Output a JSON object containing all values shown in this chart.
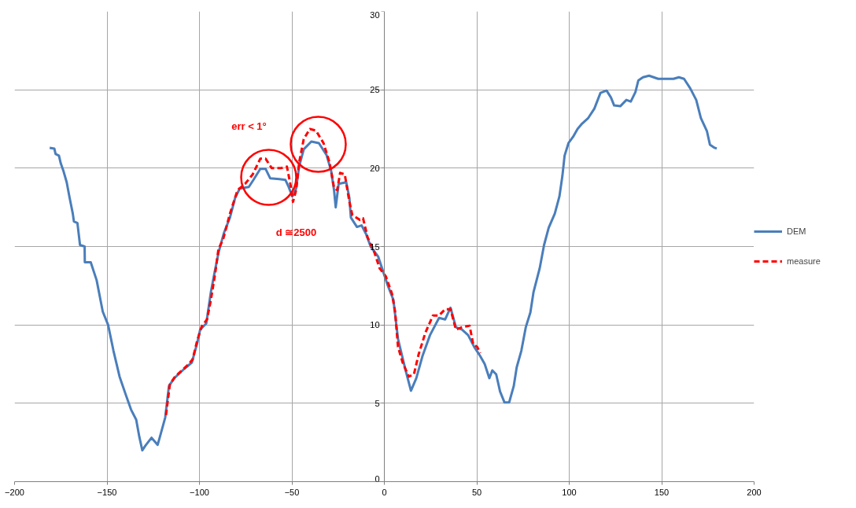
{
  "chart_data": {
    "type": "line",
    "xlim": [
      -200,
      200
    ],
    "ylim": [
      0,
      30
    ],
    "xticks": [
      -200,
      -150,
      -100,
      -50,
      0,
      50,
      100,
      150,
      200
    ],
    "yticks": [
      0,
      5,
      10,
      15,
      20,
      25,
      30
    ],
    "grid": true,
    "legend": "right",
    "series": [
      {
        "name": "DEM",
        "color": "#4a7ebb",
        "line_style": "solid",
        "x": [
          -181,
          -178.5,
          -177.8,
          -176,
          -175,
          -173.5,
          -171.8,
          -170.2,
          -168.5,
          -167.9,
          -166,
          -164.6,
          -162.1,
          -162,
          -158.8,
          -155.6,
          -152.3,
          -149.4,
          -146.5,
          -143.2,
          -140,
          -137,
          -134.2,
          -132.5,
          -130.9,
          -129.2,
          -125.9,
          -122.6,
          -121.4,
          -118.5,
          -116.5,
          -113.6,
          -108.2,
          -104.1,
          -101.2,
          -99.6,
          -96.3,
          -93.8,
          -91.8,
          -89.7,
          -86.8,
          -83.5,
          -80.7,
          -78.2,
          -73.3,
          -70.8,
          -67.1,
          -64.2,
          -61.7,
          -56.8,
          -53.5,
          -51.9,
          -49.8,
          -47.7,
          -46.1,
          -43.6,
          -39.5,
          -35.4,
          -31.3,
          -28.8,
          -27.2,
          -26.3,
          -24.7,
          -20.6,
          -18.9,
          -18.1,
          -14.8,
          -12.3,
          -9.9,
          -7.4,
          -3.3,
          1.6,
          4.9,
          7.4,
          11.5,
          14.4,
          17.3,
          20.6,
          24.7,
          29.6,
          32.9,
          35.8,
          38.7,
          42,
          45.3,
          48.6,
          51.9,
          54.3,
          56.8,
          58.4,
          60.5,
          62.6,
          65,
          67.5,
          70,
          71.6,
          74.1,
          76.5,
          79,
          80.7,
          84,
          86.4,
          88.9,
          92.2,
          94.7,
          96.3,
          97.5,
          99.6,
          102.1,
          104.5,
          107,
          110.3,
          113.6,
          116.9,
          120.2,
          122.6,
          124.3,
          127.6,
          130.9,
          133.3,
          135.8,
          137.4,
          139.9,
          143.2,
          148.1,
          156.4,
          159.3,
          162.1,
          165.4,
          168.7,
          171.2,
          174.5,
          176.1,
          178.6,
          179.8
        ],
        "values": [
          21.3,
          21.25,
          20.9,
          20.8,
          20.3,
          19.8,
          19.1,
          18.1,
          17.1,
          16.6,
          16.5,
          15.1,
          15.0,
          14.0,
          14.0,
          12.85,
          10.85,
          10.0,
          8.35,
          6.7,
          5.6,
          4.6,
          3.95,
          2.85,
          2.0,
          2.3,
          2.8,
          2.35,
          2.85,
          4.1,
          6.1,
          6.6,
          7.2,
          7.6,
          8.85,
          9.7,
          10.1,
          12.1,
          13.35,
          14.6,
          15.85,
          16.85,
          18.1,
          18.7,
          18.8,
          19.25,
          19.95,
          19.95,
          19.35,
          19.3,
          19.25,
          18.85,
          18.2,
          18.7,
          20.1,
          21.2,
          21.7,
          21.6,
          20.85,
          19.85,
          18.6,
          17.5,
          19.0,
          19.1,
          18.1,
          16.85,
          16.25,
          16.35,
          15.8,
          15.0,
          14.35,
          12.6,
          11.6,
          9.1,
          7.1,
          5.8,
          6.6,
          8.0,
          9.35,
          10.45,
          10.35,
          11.1,
          9.85,
          9.7,
          9.35,
          8.6,
          8.0,
          7.5,
          6.6,
          7.1,
          6.85,
          5.75,
          5.05,
          5.05,
          6.1,
          7.3,
          8.35,
          9.85,
          10.8,
          12.1,
          13.6,
          15.1,
          16.2,
          17.1,
          18.2,
          19.5,
          20.8,
          21.6,
          22.0,
          22.5,
          22.85,
          23.2,
          23.8,
          24.8,
          24.95,
          24.5,
          24.0,
          23.95,
          24.35,
          24.25,
          24.85,
          25.6,
          25.8,
          25.9,
          25.7,
          25.7,
          25.8,
          25.7,
          25.1,
          24.35,
          23.2,
          22.35,
          21.5,
          21.3,
          21.25
        ]
      },
      {
        "name": "measure",
        "color": "#ff0000",
        "line_style": "dashed",
        "x": [
          -118.1,
          -116,
          -113.2,
          -106.2,
          -103.7,
          -101.2,
          -98.8,
          -95.9,
          -93.8,
          -91.4,
          -89.7,
          -87.2,
          -83.5,
          -79.4,
          -75.3,
          -71.2,
          -67.1,
          -64.2,
          -60.9,
          -56,
          -52.7,
          -50.6,
          -49.4,
          -47.7,
          -46.1,
          -43.6,
          -40.3,
          -37,
          -32.9,
          -29.6,
          -27.2,
          -25.5,
          -23.9,
          -21.4,
          -18.9,
          -17.3,
          -13.2,
          -11.5,
          -9.1,
          -5.3,
          -2.5,
          0.8,
          4.1,
          5.8,
          7.4,
          9.9,
          13.2,
          16,
          18.5,
          22.2,
          26.3,
          29.6,
          32.9,
          35.8,
          38.7,
          42,
          46.1,
          48.1,
          50.2,
          51.9
        ],
        "values": [
          4.25,
          6.2,
          6.7,
          7.45,
          7.8,
          9.0,
          9.9,
          10.35,
          11.6,
          13.35,
          14.85,
          15.45,
          17.1,
          18.6,
          19.0,
          19.6,
          20.6,
          20.6,
          20.0,
          20.0,
          20.1,
          18.85,
          17.85,
          18.6,
          20.35,
          21.85,
          22.5,
          22.4,
          21.6,
          20.35,
          18.75,
          18.6,
          19.7,
          19.6,
          17.85,
          17.0,
          16.7,
          16.8,
          15.6,
          14.6,
          13.6,
          13.1,
          12.0,
          10.85,
          8.6,
          7.6,
          6.7,
          6.85,
          8.1,
          9.5,
          10.6,
          10.6,
          11.0,
          11.0,
          9.7,
          9.85,
          9.95,
          8.75,
          8.6,
          8.2
        ]
      }
    ],
    "annotations": [
      "err < 1°",
      "d ≅2500"
    ]
  }
}
